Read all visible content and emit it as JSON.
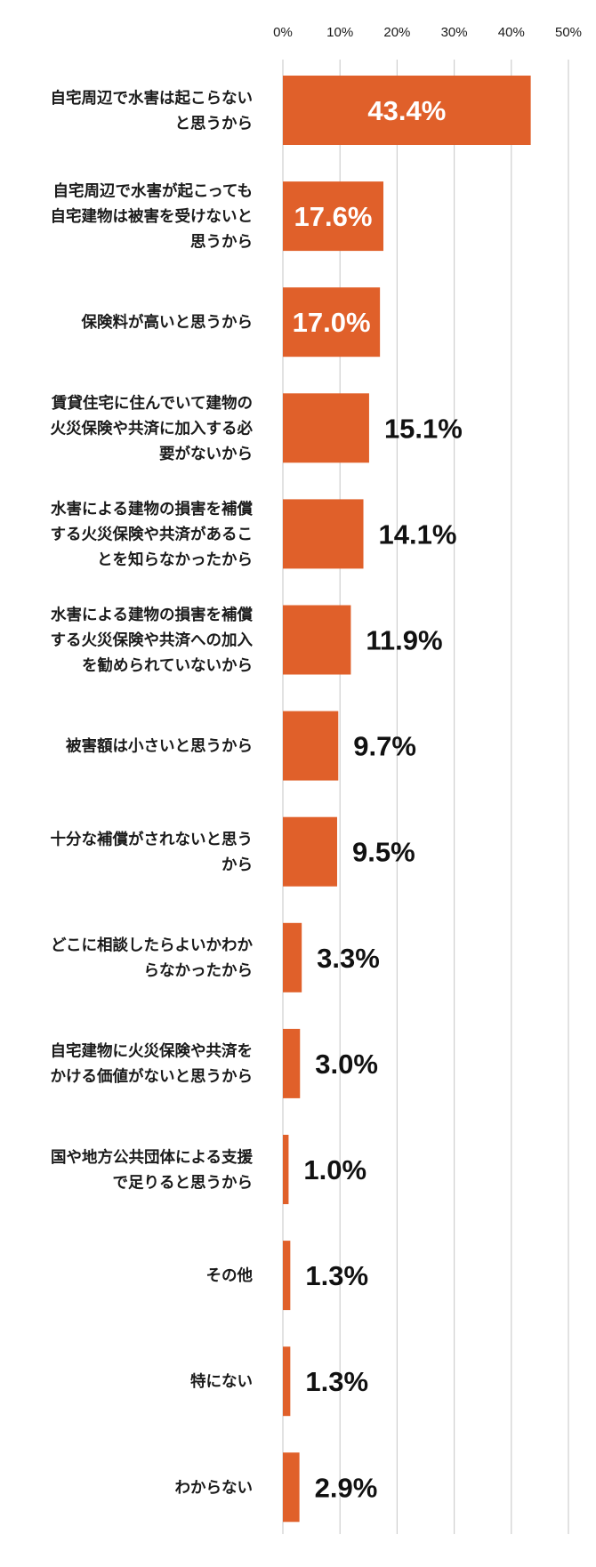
{
  "chart_data": {
    "type": "bar",
    "orientation": "horizontal",
    "title": "",
    "xlabel": "",
    "ylabel": "",
    "xlim": [
      0,
      50
    ],
    "ticks": [
      "0%",
      "10%",
      "20%",
      "30%",
      "40%",
      "50%"
    ],
    "tick_values": [
      0,
      10,
      20,
      30,
      40,
      50
    ],
    "grid": true,
    "bar_color": "#E0602A",
    "categories": [
      [
        "自宅周辺で水害は起こらない",
        "と思うから"
      ],
      [
        "自宅周辺で水害が起こっても",
        "自宅建物は被害を受けないと",
        "思うから"
      ],
      [
        "保険料が高いと思うから"
      ],
      [
        "賃貸住宅に住んでいて建物の",
        "火災保険や共済に加入する必",
        "要がないから"
      ],
      [
        "水害による建物の損害を補償",
        "する火災保険や共済があるこ",
        "とを知らなかったから"
      ],
      [
        "水害による建物の損害を補償",
        "する火災保険や共済への加入",
        "を勧められていないから"
      ],
      [
        "被害額は小さいと思うから"
      ],
      [
        "十分な補償がされないと思う",
        "から"
      ],
      [
        "どこに相談したらよいかわか",
        "らなかったから"
      ],
      [
        "自宅建物に火災保険や共済を",
        "かける価値がないと思うから"
      ],
      [
        "国や地方公共団体による支援",
        "で足りると思うから"
      ],
      [
        "その他"
      ],
      [
        "特にない"
      ],
      [
        "わからない"
      ]
    ],
    "values": [
      43.4,
      17.6,
      17.0,
      15.1,
      14.1,
      11.9,
      9.7,
      9.5,
      3.3,
      3.0,
      1.0,
      1.3,
      1.3,
      2.9
    ],
    "value_labels": [
      "43.4%",
      "17.6%",
      "17.0%",
      "15.1%",
      "14.1%",
      "11.9%",
      "9.7%",
      "9.5%",
      "3.3%",
      "3.0%",
      "1.0%",
      "1.3%",
      "1.3%",
      "2.9%"
    ]
  }
}
